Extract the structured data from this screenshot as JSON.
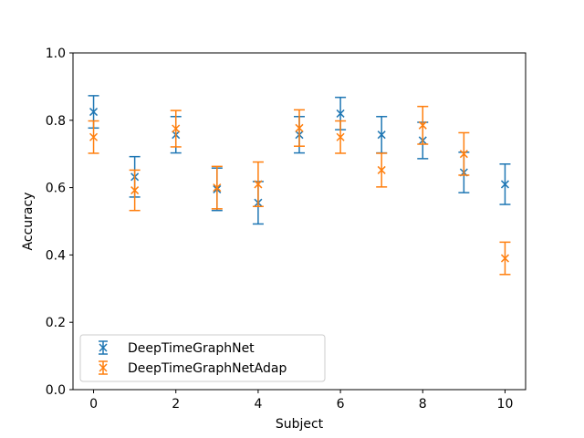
{
  "chart_data": {
    "type": "scatter",
    "xlabel": "Subject",
    "ylabel": "Accuracy",
    "xlim": [
      -0.5,
      10.5
    ],
    "ylim": [
      0.0,
      1.0
    ],
    "xticks": [
      "0",
      "2",
      "4",
      "6",
      "8",
      "10"
    ],
    "yticks": [
      "0.0",
      "0.2",
      "0.4",
      "0.6",
      "0.8",
      "1.0"
    ],
    "grid": false,
    "legend_position": "lower-left",
    "error_bars": true,
    "series": [
      {
        "name": "DeepTimeGraphNet",
        "color": "#1f77b4",
        "marker": "x",
        "x": [
          0,
          1,
          2,
          3,
          4,
          5,
          6,
          7,
          8,
          9,
          10
        ],
        "values": [
          0.825,
          0.632,
          0.757,
          0.595,
          0.555,
          0.757,
          0.82,
          0.757,
          0.74,
          0.645,
          0.61
        ],
        "errors": [
          0.048,
          0.06,
          0.054,
          0.063,
          0.063,
          0.054,
          0.048,
          0.054,
          0.054,
          0.06,
          0.06
        ]
      },
      {
        "name": "DeepTimeGraphNetAdap",
        "color": "#ff7f0e",
        "marker": "x",
        "x": [
          0,
          1,
          2,
          3,
          4,
          5,
          6,
          7,
          8,
          9,
          10
        ],
        "values": [
          0.75,
          0.592,
          0.775,
          0.6,
          0.61,
          0.777,
          0.75,
          0.652,
          0.785,
          0.7,
          0.39
        ],
        "errors": [
          0.048,
          0.06,
          0.054,
          0.063,
          0.066,
          0.054,
          0.048,
          0.05,
          0.056,
          0.063,
          0.048
        ]
      }
    ]
  }
}
